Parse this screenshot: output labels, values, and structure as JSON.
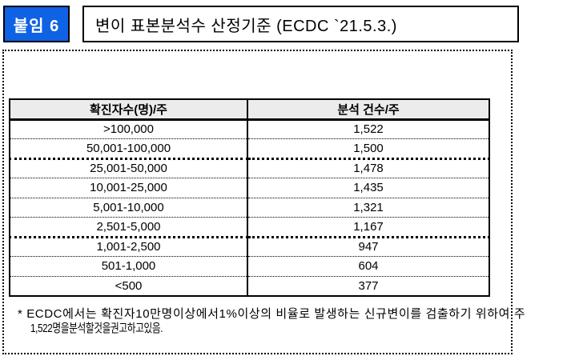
{
  "header": {
    "badge": "붙임 6",
    "title": "변이 표본분석수 산정기준 (ECDC `21.5.3.)"
  },
  "table": {
    "columns": [
      "확진자수(명)/주",
      "분석 건수/주"
    ],
    "rows": [
      {
        "cases": ">100,000",
        "analyses": "1,522"
      },
      {
        "cases": "50,001-100,000",
        "analyses": "1,500"
      },
      {
        "cases": "25,001-50,000",
        "analyses": "1,478"
      },
      {
        "cases": "10,001-25,000",
        "analyses": "1,435"
      },
      {
        "cases": "5,001-10,000",
        "analyses": "1,321"
      },
      {
        "cases": "2,501-5,000",
        "analyses": "1,167"
      },
      {
        "cases": "1,001-2,500",
        "analyses": "947"
      },
      {
        "cases": "501-1,000",
        "analyses": "604"
      },
      {
        "cases": "<500",
        "analyses": "377"
      }
    ]
  },
  "footnote": {
    "line1": "* ECDC에서는 확진자10만명이상에서1%이상의 비율로 발생하는 신규변이를 검출하기 위하여 주",
    "line2": "1,522명을분석할것을권고하고있음."
  },
  "colors": {
    "badge_blue": "#1062E5",
    "header_gray": "#ececec"
  }
}
